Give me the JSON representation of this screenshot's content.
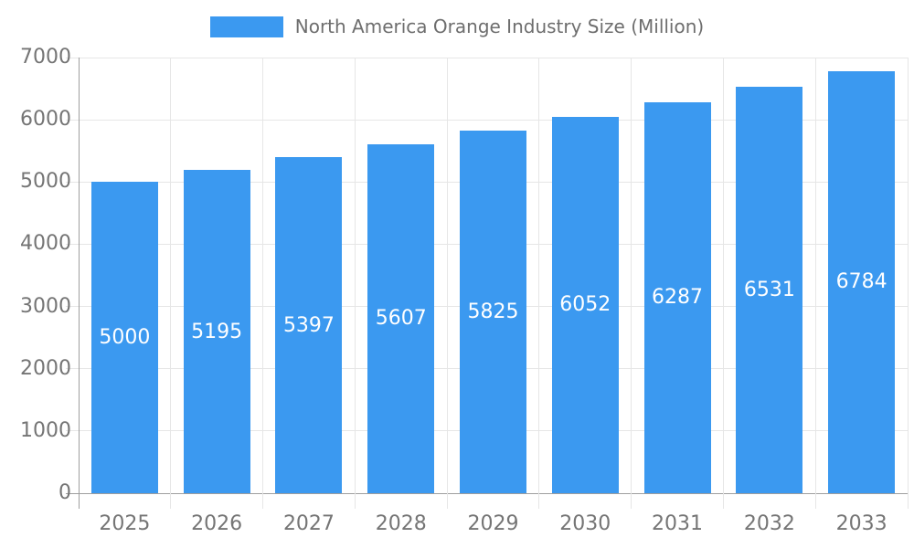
{
  "chart_data": {
    "type": "bar",
    "title": "North America Orange Industry Size (Million)",
    "legend_position": "top",
    "categories": [
      "2025",
      "2026",
      "2027",
      "2028",
      "2029",
      "2030",
      "2031",
      "2032",
      "2033"
    ],
    "values": [
      5000,
      5195,
      5397,
      5607,
      5825,
      6052,
      6287,
      6531,
      6784
    ],
    "xlabel": "",
    "ylabel": "",
    "ylim": [
      0,
      7000
    ],
    "yticks": [
      0,
      1000,
      2000,
      3000,
      4000,
      5000,
      6000,
      7000
    ],
    "grid": true,
    "colors": {
      "bar": "#3b99f0",
      "value_label": "#ffffff",
      "axis_label": "#757575",
      "legend_text": "#6e6e6e",
      "gridline": "#e6e6e6",
      "axis_line": "#9e9e9e"
    }
  }
}
